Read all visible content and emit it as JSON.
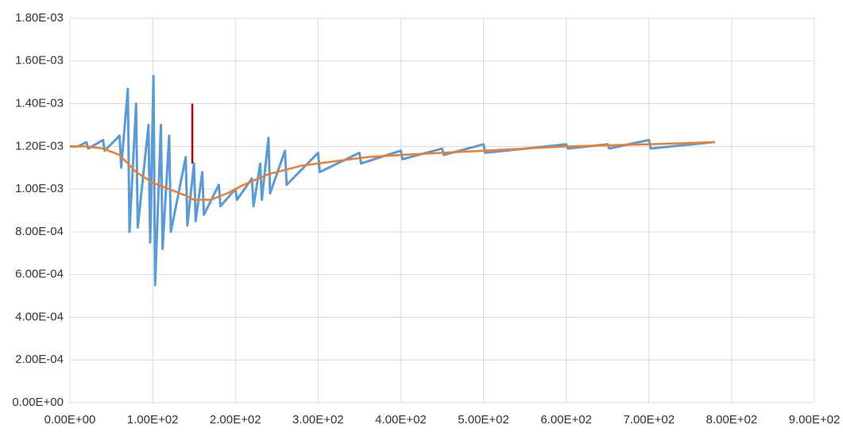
{
  "chart_data": {
    "type": "line",
    "xlim": [
      0,
      900
    ],
    "xticks": [
      {
        "value": 0,
        "label": "0.00E+00"
      },
      {
        "value": 100,
        "label": "1.00E+02"
      },
      {
        "value": 200,
        "label": "2.00E+02"
      },
      {
        "value": 300,
        "label": "3.00E+02"
      },
      {
        "value": 400,
        "label": "4.00E+02"
      },
      {
        "value": 500,
        "label": "5.00E+02"
      },
      {
        "value": 600,
        "label": "6.00E+02"
      },
      {
        "value": 700,
        "label": "7.00E+02"
      },
      {
        "value": 800,
        "label": "8.00E+02"
      },
      {
        "value": 900,
        "label": "9.00E+02"
      }
    ],
    "ylim": [
      0,
      0.0018
    ],
    "yticks": [
      {
        "value": 0,
        "label": "0.00E+00"
      },
      {
        "value": 0.0002,
        "label": "2.00E-04"
      },
      {
        "value": 0.0004,
        "label": "4.00E-04"
      },
      {
        "value": 0.0006,
        "label": "6.00E-04"
      },
      {
        "value": 0.0008,
        "label": "8.00E-04"
      },
      {
        "value": 0.001,
        "label": "1.00E-03"
      },
      {
        "value": 0.0012,
        "label": "1.20E-03"
      },
      {
        "value": 0.0014,
        "label": "1.40E-03"
      },
      {
        "value": 0.0016,
        "label": "1.60E-03"
      },
      {
        "value": 0.0018,
        "label": "1.80E-03"
      }
    ],
    "grid": true,
    "series": [
      {
        "color": "#5b9bd5",
        "x": [
          0,
          10,
          20,
          22,
          40,
          42,
          60,
          62,
          70,
          72,
          80,
          82,
          95,
          97,
          101,
          103,
          110,
          112,
          120,
          122,
          140,
          142,
          150,
          152,
          160,
          162,
          180,
          182,
          200,
          202,
          220,
          222,
          230,
          232,
          240,
          242,
          260,
          262,
          300,
          302,
          350,
          352,
          400,
          402,
          450,
          452,
          500,
          502,
          600,
          602,
          650,
          652,
          700,
          702,
          778
        ],
        "values": [
          0.0012,
          0.0012,
          0.00122,
          0.00119,
          0.00123,
          0.00118,
          0.00125,
          0.0011,
          0.00147,
          0.0008,
          0.0014,
          0.00082,
          0.0013,
          0.00075,
          0.00153,
          0.00055,
          0.0013,
          0.00072,
          0.00125,
          0.0008,
          0.00115,
          0.00083,
          0.00112,
          0.00085,
          0.00108,
          0.00088,
          0.00102,
          0.00092,
          0.001,
          0.00095,
          0.00105,
          0.00092,
          0.00112,
          0.00095,
          0.00124,
          0.00098,
          0.00118,
          0.00102,
          0.00117,
          0.00108,
          0.00117,
          0.00112,
          0.00118,
          0.00114,
          0.00119,
          0.00116,
          0.00121,
          0.00117,
          0.00121,
          0.00119,
          0.00121,
          0.00119,
          0.00123,
          0.00119,
          0.00122
        ]
      },
      {
        "color": "#ed7d31",
        "x": [
          0,
          20,
          40,
          60,
          80,
          100,
          120,
          140,
          150,
          170,
          190,
          210,
          240,
          280,
          320,
          360,
          400,
          450,
          500,
          550,
          600,
          650,
          700,
          780
        ],
        "values": [
          0.0012,
          0.0012,
          0.00119,
          0.00116,
          0.00108,
          0.00103,
          0.001,
          0.00097,
          0.00095,
          0.00095,
          0.00098,
          0.00102,
          0.00107,
          0.00111,
          0.00113,
          0.00115,
          0.00116,
          0.00117,
          0.00118,
          0.00119,
          0.0012,
          0.001205,
          0.00121,
          0.00122
        ]
      },
      {
        "color": "#c00000",
        "x": [
          148,
          148
        ],
        "values": [
          0.00112,
          0.0014
        ]
      }
    ]
  }
}
